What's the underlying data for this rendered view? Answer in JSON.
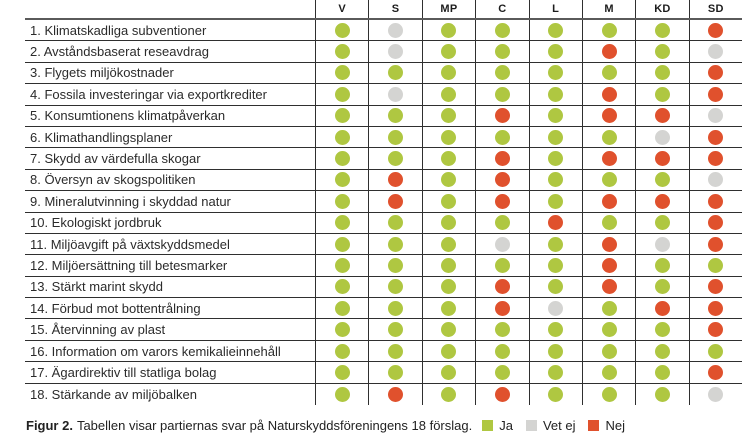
{
  "colors": {
    "ja": "#afc741",
    "vet_ej": "#d4d4d2",
    "nej": "#e0512d"
  },
  "table": {
    "parties": [
      "V",
      "S",
      "MP",
      "C",
      "L",
      "M",
      "KD",
      "SD"
    ],
    "rows": [
      {
        "label": "1. Klimatskadliga subventioner",
        "answers": [
          "ja",
          "vet_ej",
          "ja",
          "ja",
          "ja",
          "ja",
          "ja",
          "nej"
        ]
      },
      {
        "label": "2. Avståndsbaserat reseavdrag",
        "answers": [
          "ja",
          "vet_ej",
          "ja",
          "ja",
          "ja",
          "nej",
          "ja",
          "vet_ej"
        ]
      },
      {
        "label": "3. Flygets miljökostnader",
        "answers": [
          "ja",
          "ja",
          "ja",
          "ja",
          "ja",
          "ja",
          "ja",
          "nej"
        ]
      },
      {
        "label": "4. Fossila investeringar via exportkrediter",
        "answers": [
          "ja",
          "vet_ej",
          "ja",
          "ja",
          "ja",
          "nej",
          "ja",
          "nej"
        ]
      },
      {
        "label": "5. Konsumtionens klimatpåverkan",
        "answers": [
          "ja",
          "ja",
          "ja",
          "nej",
          "ja",
          "nej",
          "nej",
          "vet_ej"
        ]
      },
      {
        "label": "6. Klimathandlingsplaner",
        "answers": [
          "ja",
          "ja",
          "ja",
          "ja",
          "ja",
          "ja",
          "vet_ej",
          "nej"
        ]
      },
      {
        "label": "7. Skydd av värdefulla skogar",
        "answers": [
          "ja",
          "ja",
          "ja",
          "nej",
          "ja",
          "nej",
          "nej",
          "nej"
        ]
      },
      {
        "label": "8. Översyn av skogspolitiken",
        "answers": [
          "ja",
          "nej",
          "ja",
          "nej",
          "ja",
          "ja",
          "ja",
          "vet_ej"
        ]
      },
      {
        "label": "9. Mineralutvinning i skyddad natur",
        "answers": [
          "ja",
          "nej",
          "ja",
          "nej",
          "ja",
          "nej",
          "nej",
          "nej"
        ]
      },
      {
        "label": "10. Ekologiskt jordbruk",
        "answers": [
          "ja",
          "ja",
          "ja",
          "ja",
          "nej",
          "ja",
          "ja",
          "nej"
        ]
      },
      {
        "label": "11. Miljöavgift på växtskyddsmedel",
        "answers": [
          "ja",
          "ja",
          "ja",
          "vet_ej",
          "ja",
          "nej",
          "vet_ej",
          "nej"
        ]
      },
      {
        "label": "12. Miljöersättning till betesmarker",
        "answers": [
          "ja",
          "ja",
          "ja",
          "ja",
          "ja",
          "nej",
          "ja",
          "ja"
        ]
      },
      {
        "label": "13. Stärkt marint skydd",
        "answers": [
          "ja",
          "ja",
          "ja",
          "nej",
          "ja",
          "nej",
          "ja",
          "nej"
        ]
      },
      {
        "label": "14. Förbud mot bottentrålning",
        "answers": [
          "ja",
          "ja",
          "ja",
          "nej",
          "vet_ej",
          "ja",
          "nej",
          "nej"
        ]
      },
      {
        "label": "15. Återvinning av plast",
        "answers": [
          "ja",
          "ja",
          "ja",
          "ja",
          "ja",
          "ja",
          "ja",
          "nej"
        ]
      },
      {
        "label": "16. Information om varors kemikalieinnehåll",
        "answers": [
          "ja",
          "ja",
          "ja",
          "ja",
          "ja",
          "ja",
          "ja",
          "ja"
        ]
      },
      {
        "label": "17. Ägardirektiv till statliga bolag",
        "answers": [
          "ja",
          "ja",
          "ja",
          "ja",
          "ja",
          "ja",
          "ja",
          "nej"
        ]
      },
      {
        "label": "18. Stärkande av miljöbalken",
        "answers": [
          "ja",
          "nej",
          "ja",
          "nej",
          "ja",
          "ja",
          "ja",
          "vet_ej"
        ]
      }
    ]
  },
  "caption": {
    "prefix": "Figur 2.",
    "text": "Tabellen visar partiernas svar på Naturskyddsföreningens 18 förslag.",
    "legend": [
      {
        "key": "ja",
        "label": "Ja"
      },
      {
        "key": "vet_ej",
        "label": "Vet ej"
      },
      {
        "key": "nej",
        "label": "Nej"
      }
    ]
  },
  "chart_data": {
    "type": "table",
    "title": "Figur 2. Tabellen visar partiernas svar på Naturskyddsföreningens 18 förslag.",
    "columns": [
      "V",
      "S",
      "MP",
      "C",
      "L",
      "M",
      "KD",
      "SD"
    ],
    "legend": {
      "ja": "Ja",
      "vet_ej": "Vet ej",
      "nej": "Nej"
    },
    "rows": [
      {
        "label": "1. Klimatskadliga subventioner",
        "values": [
          "ja",
          "vet_ej",
          "ja",
          "ja",
          "ja",
          "ja",
          "ja",
          "nej"
        ]
      },
      {
        "label": "2. Avståndsbaserat reseavdrag",
        "values": [
          "ja",
          "vet_ej",
          "ja",
          "ja",
          "ja",
          "nej",
          "ja",
          "vet_ej"
        ]
      },
      {
        "label": "3. Flygets miljökostnader",
        "values": [
          "ja",
          "ja",
          "ja",
          "ja",
          "ja",
          "ja",
          "ja",
          "nej"
        ]
      },
      {
        "label": "4. Fossila investeringar via exportkrediter",
        "values": [
          "ja",
          "vet_ej",
          "ja",
          "ja",
          "ja",
          "nej",
          "ja",
          "nej"
        ]
      },
      {
        "label": "5. Konsumtionens klimatpåverkan",
        "values": [
          "ja",
          "ja",
          "ja",
          "nej",
          "ja",
          "nej",
          "nej",
          "vet_ej"
        ]
      },
      {
        "label": "6. Klimathandlingsplaner",
        "values": [
          "ja",
          "ja",
          "ja",
          "ja",
          "ja",
          "ja",
          "vet_ej",
          "nej"
        ]
      },
      {
        "label": "7. Skydd av värdefulla skogar",
        "values": [
          "ja",
          "ja",
          "ja",
          "nej",
          "ja",
          "nej",
          "nej",
          "nej"
        ]
      },
      {
        "label": "8. Översyn av skogspolitiken",
        "values": [
          "ja",
          "nej",
          "ja",
          "nej",
          "ja",
          "ja",
          "ja",
          "vet_ej"
        ]
      },
      {
        "label": "9. Mineralutvinning i skyddad natur",
        "values": [
          "ja",
          "nej",
          "ja",
          "nej",
          "ja",
          "nej",
          "nej",
          "nej"
        ]
      },
      {
        "label": "10. Ekologiskt jordbruk",
        "values": [
          "ja",
          "ja",
          "ja",
          "ja",
          "nej",
          "ja",
          "ja",
          "nej"
        ]
      },
      {
        "label": "11. Miljöavgift på växtskyddsmedel",
        "values": [
          "ja",
          "ja",
          "ja",
          "vet_ej",
          "ja",
          "nej",
          "vet_ej",
          "nej"
        ]
      },
      {
        "label": "12. Miljöersättning till betesmarker",
        "values": [
          "ja",
          "ja",
          "ja",
          "ja",
          "ja",
          "nej",
          "ja",
          "ja"
        ]
      },
      {
        "label": "13. Stärkt marint skydd",
        "values": [
          "ja",
          "ja",
          "ja",
          "nej",
          "ja",
          "nej",
          "ja",
          "nej"
        ]
      },
      {
        "label": "14. Förbud mot bottentrålning",
        "values": [
          "ja",
          "ja",
          "ja",
          "nej",
          "vet_ej",
          "ja",
          "nej",
          "nej"
        ]
      },
      {
        "label": "15. Återvinning av plast",
        "values": [
          "ja",
          "ja",
          "ja",
          "ja",
          "ja",
          "ja",
          "ja",
          "nej"
        ]
      },
      {
        "label": "16. Information om varors kemikalieinnehåll",
        "values": [
          "ja",
          "ja",
          "ja",
          "ja",
          "ja",
          "ja",
          "ja",
          "ja"
        ]
      },
      {
        "label": "17. Ägardirektiv till statliga bolag",
        "values": [
          "ja",
          "ja",
          "ja",
          "ja",
          "ja",
          "ja",
          "ja",
          "nej"
        ]
      },
      {
        "label": "18. Stärkande av miljöbalken",
        "values": [
          "ja",
          "nej",
          "ja",
          "nej",
          "ja",
          "ja",
          "ja",
          "vet_ej"
        ]
      }
    ]
  }
}
